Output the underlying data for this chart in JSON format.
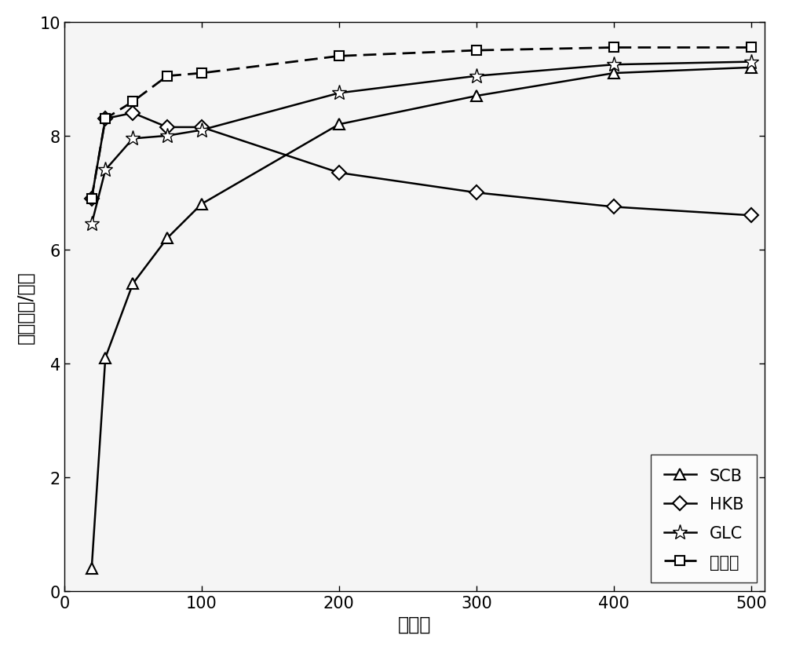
{
  "x": [
    20,
    30,
    50,
    75,
    100,
    200,
    300,
    400,
    500
  ],
  "SCB": [
    0.4,
    4.1,
    5.4,
    6.2,
    6.8,
    8.2,
    8.7,
    9.1,
    9.2
  ],
  "HKB": [
    6.9,
    8.3,
    8.4,
    8.15,
    8.15,
    7.35,
    7.0,
    6.75,
    6.6
  ],
  "GLC": [
    6.45,
    7.4,
    7.95,
    8.0,
    8.1,
    8.75,
    9.05,
    9.25,
    9.3
  ],
  "invention": [
    6.9,
    8.3,
    8.6,
    9.05,
    9.1,
    9.4,
    9.5,
    9.55,
    9.55
  ],
  "xlabel": "快拍数",
  "ylabel": "信干噪比/分贝",
  "xlim": [
    0,
    510
  ],
  "ylim": [
    0,
    10
  ],
  "xticks": [
    0,
    100,
    200,
    300,
    400,
    500
  ],
  "yticks": [
    0,
    2,
    4,
    6,
    8,
    10
  ],
  "legend_SCB": "SCB",
  "legend_HKB": "HKB",
  "legend_GLC": "GLC",
  "legend_invention": "本发明",
  "line_color": "#000000",
  "bg_color": "#f5f5f5",
  "fontsize_label": 17,
  "fontsize_tick": 15,
  "fontsize_legend": 15
}
